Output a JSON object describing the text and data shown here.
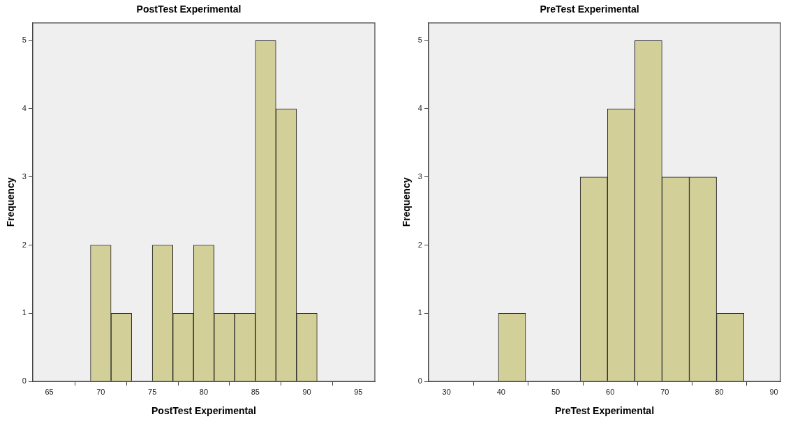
{
  "chart_data": [
    {
      "type": "histogram",
      "title": "PostTest Experimental",
      "xlabel": "PostTest Experimental",
      "ylabel": "Frequency",
      "color": "#d3cf98",
      "bins": [
        69,
        71,
        73,
        75,
        77,
        79,
        81,
        83,
        85,
        87,
        89,
        91
      ],
      "values": [
        2,
        1,
        0,
        2,
        1,
        2,
        1,
        1,
        5,
        4,
        1
      ],
      "xlim": [
        63.4,
        96.6
      ],
      "xticks": [
        65,
        70,
        75,
        80,
        85,
        90,
        95
      ],
      "ylim": [
        0,
        5.26
      ],
      "yticks": [
        0,
        1,
        2,
        3,
        4,
        5
      ],
      "grid": false,
      "legend": false
    },
    {
      "type": "histogram",
      "title": "PreTest Experimental",
      "xlabel": "PreTest Experimental",
      "ylabel": "Frequency",
      "color": "#d3cf98",
      "bins": [
        39.5,
        44.5,
        49.5,
        54.5,
        59.5,
        64.5,
        69.5,
        74.5,
        79.5,
        84.5
      ],
      "values": [
        1,
        0,
        0,
        3,
        4,
        5,
        3,
        3,
        1
      ],
      "xlim": [
        26.7,
        91.2
      ],
      "xticks": [
        30,
        40,
        50,
        60,
        70,
        80,
        90
      ],
      "ylim": [
        0,
        5.26
      ],
      "yticks": [
        0,
        1,
        2,
        3,
        4,
        5
      ],
      "grid": false,
      "legend": false
    }
  ]
}
